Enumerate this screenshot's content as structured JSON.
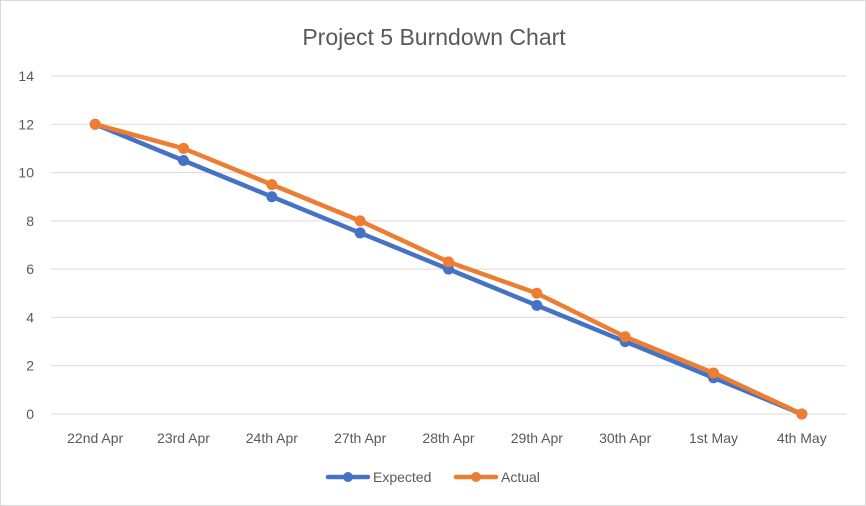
{
  "chart_data": {
    "type": "line",
    "title": "Project 5 Burndown Chart",
    "xlabel": "",
    "ylabel": "",
    "categories": [
      "22nd Apr",
      "23rd Apr",
      "24th Apr",
      "27th Apr",
      "28th Apr",
      "29th Apr",
      "30th Apr",
      "1st May",
      "4th May"
    ],
    "ylim": [
      0,
      14
    ],
    "yticks": [
      "0",
      "2",
      "4",
      "6",
      "8",
      "10",
      "12",
      "14"
    ],
    "grid": true,
    "legend_position": "bottom",
    "series": [
      {
        "name": "Expected",
        "color": "#4472c4",
        "values": [
          12,
          10.5,
          9,
          7.5,
          6,
          4.5,
          3,
          1.5,
          0
        ]
      },
      {
        "name": "Actual",
        "color": "#ed7d31",
        "values": [
          12,
          11,
          9.5,
          8,
          6.3,
          5,
          3.2,
          1.7,
          0
        ]
      }
    ]
  }
}
